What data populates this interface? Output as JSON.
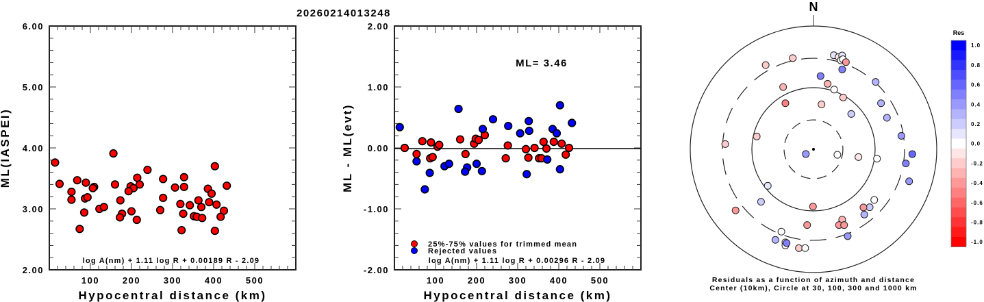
{
  "title": "20260214013248",
  "chart_data": [
    {
      "type": "scatter",
      "name": "ml-vs-distance",
      "xlabel": "Hypocentral distance (km)",
      "ylabel": "ML(IASPEI)",
      "xlim": [
        0,
        600
      ],
      "ylim": [
        2.0,
        6.0
      ],
      "x_ticks": [
        "100",
        "200",
        "300",
        "400",
        "500"
      ],
      "y_ticks": [
        "2.00",
        "3.00",
        "4.00",
        "5.00",
        "6.00"
      ],
      "formula": "log A(nm) + 1.11 log R + 0.00189 R - 2.09",
      "marker_color": "#ff0000",
      "points": [
        [
          14,
          3.76
        ],
        [
          25,
          3.41
        ],
        [
          68,
          3.47
        ],
        [
          54,
          3.28
        ],
        [
          54,
          3.15
        ],
        [
          89,
          3.43
        ],
        [
          109,
          3.36
        ],
        [
          106,
          3.34
        ],
        [
          87,
          3.17
        ],
        [
          93,
          3.19
        ],
        [
          85,
          2.94
        ],
        [
          74,
          2.67
        ],
        [
          122,
          3.0
        ],
        [
          133,
          3.03
        ],
        [
          156,
          3.91
        ],
        [
          160,
          3.4
        ],
        [
          173,
          3.14
        ],
        [
          177,
          2.92
        ],
        [
          172,
          2.86
        ],
        [
          198,
          3.37
        ],
        [
          205,
          3.34
        ],
        [
          193,
          3.29
        ],
        [
          214,
          3.51
        ],
        [
          220,
          3.4
        ],
        [
          200,
          2.96
        ],
        [
          213,
          2.82
        ],
        [
          239,
          3.64
        ],
        [
          277,
          3.49
        ],
        [
          277,
          3.18
        ],
        [
          270,
          2.98
        ],
        [
          403,
          3.7
        ],
        [
          328,
          3.52
        ],
        [
          306,
          3.35
        ],
        [
          328,
          3.36
        ],
        [
          386,
          3.33
        ],
        [
          395,
          3.25
        ],
        [
          432,
          3.38
        ],
        [
          363,
          3.14
        ],
        [
          389,
          3.11
        ],
        [
          319,
          3.08
        ],
        [
          342,
          3.06
        ],
        [
          370,
          3.03
        ],
        [
          407,
          3.07
        ],
        [
          425,
          2.97
        ],
        [
          326,
          2.92
        ],
        [
          352,
          2.88
        ],
        [
          359,
          2.87
        ],
        [
          372,
          2.85
        ],
        [
          417,
          2.87
        ],
        [
          322,
          2.65
        ],
        [
          403,
          2.64
        ]
      ]
    },
    {
      "type": "scatter",
      "name": "residual-vs-distance",
      "xlabel": "Hypocentral distance (km)",
      "ylabel": "ML - ML(evt)",
      "xlim": [
        0,
        600
      ],
      "ylim": [
        -2.0,
        2.0
      ],
      "x_ticks": [
        "100",
        "200",
        "300",
        "400",
        "500"
      ],
      "y_ticks": [
        "-2.00",
        "-1.00",
        "0.00",
        "1.00",
        "2.00"
      ],
      "annotation": "ML= 3.46",
      "formula": "log A(nm) + 1.11 log R + 0.00296 R - 2.09",
      "legend": [
        {
          "label": "25%-75% values for trimmed mean",
          "color": "#ff0000"
        },
        {
          "label": "Rejected values",
          "color": "#0000ff"
        }
      ],
      "legend_position": "bottom-left",
      "series": [
        {
          "name": "25%-75% values for trimmed mean",
          "color": "#ff0000",
          "points": [
            [
              25,
              0.0
            ],
            [
              68,
              0.11
            ],
            [
              89,
              0.09
            ],
            [
              105,
              0.02
            ],
            [
              109,
              0.05
            ],
            [
              54,
              -0.1
            ],
            [
              87,
              -0.17
            ],
            [
              93,
              -0.15
            ],
            [
              160,
              0.14
            ],
            [
              173,
              -0.1
            ],
            [
              194,
              0.07
            ],
            [
              198,
              0.15
            ],
            [
              205,
              0.13
            ],
            [
              220,
              0.21
            ],
            [
              276,
              0.04
            ],
            [
              271,
              -0.17
            ],
            [
              320,
              -0.02
            ],
            [
              326,
              -0.16
            ],
            [
              341,
              0.0
            ],
            [
              363,
              0.1
            ],
            [
              370,
              -0.01
            ],
            [
              352,
              -0.17
            ],
            [
              358,
              -0.17
            ],
            [
              388,
              0.1
            ],
            [
              407,
              0.07
            ],
            [
              425,
              0.0
            ],
            [
              417,
              -0.11
            ]
          ]
        },
        {
          "name": "Rejected values",
          "color": "#0000ff",
          "points": [
            [
              13,
              0.34
            ],
            [
              54,
              -0.22
            ],
            [
              86,
              -0.41
            ],
            [
              74,
              -0.68
            ],
            [
              122,
              -0.3
            ],
            [
              133,
              -0.26
            ],
            [
              156,
              0.64
            ],
            [
              177,
              -0.32
            ],
            [
              172,
              -0.39
            ],
            [
              215,
              0.31
            ],
            [
              200,
              -0.26
            ],
            [
              213,
              -0.38
            ],
            [
              240,
              0.47
            ],
            [
              277,
              0.36
            ],
            [
              306,
              0.24
            ],
            [
              327,
              0.44
            ],
            [
              328,
              0.28
            ],
            [
              322,
              -0.43
            ],
            [
              372,
              -0.19
            ],
            [
              385,
              0.31
            ],
            [
              395,
              0.24
            ],
            [
              403,
              0.7
            ],
            [
              432,
              0.41
            ],
            [
              403,
              -0.35
            ]
          ]
        }
      ]
    },
    {
      "type": "scatter",
      "name": "residual-polar",
      "north_label": "N",
      "caption_line1": "Residuals as a function of azimuth and distance",
      "caption_line2": "Center (10km), Circle at 30, 100, 300 and 1000 km",
      "center_km": 10,
      "circles_km": [
        30,
        100,
        300,
        1000
      ],
      "colorbar": {
        "title": "Res",
        "range": [
          -1.0,
          1.0
        ],
        "labels": [
          "1.0",
          "0.8",
          "0.6",
          "0.4",
          "0.2",
          "0.0",
          "-0.2",
          "-0.4",
          "-0.6",
          "-0.8",
          "-1.0"
        ],
        "positive_color": "#0000ff",
        "negative_color": "#ff0000"
      },
      "points_az_dist_res": [
        [
          12.2,
          364,
          0.15
        ],
        [
          15.2,
          356,
          -0.15
        ],
        [
          17.0,
          390,
          0.1
        ],
        [
          17.1,
          323,
          0.0
        ],
        [
          18.1,
          344,
          0.0
        ],
        [
          20.4,
          323,
          -0.4
        ],
        [
          347.2,
          329,
          -0.2
        ],
        [
          330.4,
          373,
          -0.2
        ],
        [
          19.8,
          238,
          0.5
        ],
        [
          5.5,
          156,
          0.6
        ],
        [
          12.2,
          122,
          -0.3
        ],
        [
          19.1,
          106,
          0.0
        ],
        [
          334,
          133,
          -0.3
        ],
        [
          42.7,
          307,
          0.3
        ],
        [
          29.8,
          93,
          -0.2
        ],
        [
          328.6,
          75,
          -0.6
        ],
        [
          10.1,
          55,
          -0.2
        ],
        [
          55.7,
          212,
          0.3
        ],
        [
          46.9,
          69,
          0.2
        ],
        [
          66.8,
          198,
          0.3
        ],
        [
          81.3,
          277,
          0.4
        ],
        [
          282.7,
          88,
          -0.2
        ],
        [
          273.4,
          272,
          -0.2
        ],
        [
          238.2,
          14,
          0.4
        ],
        [
          103,
          25,
          0.0
        ],
        [
          99.8,
          55,
          -0.15
        ],
        [
          98.4,
          110,
          0.0
        ],
        [
          92.8,
          403,
          0.7
        ],
        [
          98.7,
          328,
          0.55
        ],
        [
          108.5,
          433,
          0.45
        ],
        [
          231.4,
          89,
          0.1
        ],
        [
          225,
          160,
          0.2
        ],
        [
          231.9,
          404,
          -0.4
        ],
        [
          180.5,
          85,
          -0.5
        ],
        [
          129.8,
          192,
          0.05
        ],
        [
          135.9,
          204,
          0.2
        ],
        [
          139.3,
          175,
          -0.4
        ],
        [
          142.1,
          220,
          0.3
        ],
        [
          157.8,
          171,
          -0.3
        ],
        [
          161.4,
          198,
          -0.4
        ],
        [
          158,
          212,
          -0.5
        ],
        [
          184.8,
          171,
          -0.5
        ],
        [
          158.5,
          327,
          0.4
        ],
        [
          201.3,
          272,
          0.05
        ],
        [
          202.8,
          393,
          0.3
        ],
        [
          196.8,
          377,
          0.0
        ],
        [
          196.3,
          421,
          0.05
        ],
        [
          196,
          383,
          0.5
        ],
        [
          188.4,
          418,
          -0.2
        ],
        [
          184.8,
          406,
          0.05
        ]
      ]
    }
  ]
}
